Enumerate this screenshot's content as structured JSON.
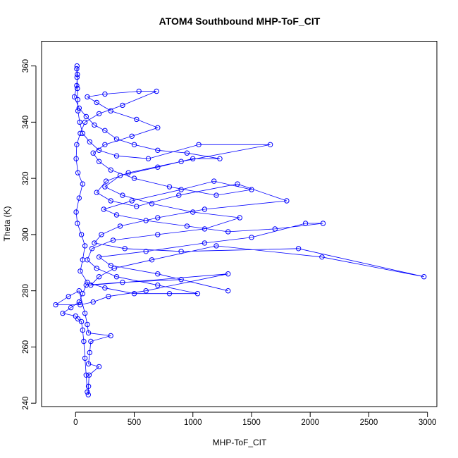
{
  "chart_data": {
    "type": "scatter",
    "title": "ATOM4 Southbound MHP-ToF_CIT",
    "xlabel": "MHP-ToF_CIT",
    "ylabel": "Theta (K)",
    "xlim": [
      -290,
      3080
    ],
    "ylim": [
      238.8,
      368.8
    ],
    "xticks": [
      0,
      500,
      1000,
      1500,
      2000,
      2500,
      3000
    ],
    "yticks": [
      240,
      260,
      280,
      300,
      320,
      340,
      360
    ],
    "grid": false,
    "legend": "none",
    "series_color": "#0000ff",
    "marker": "open-circle",
    "line": true,
    "series": [
      {
        "points": [
          [
            10,
            359
          ],
          [
            12,
            356
          ],
          [
            15,
            352
          ],
          [
            18,
            348
          ],
          [
            20,
            344
          ],
          [
            35,
            340
          ],
          [
            60,
            336
          ],
          [
            120,
            333
          ],
          [
            200,
            330
          ],
          [
            350,
            328
          ],
          [
            620,
            327
          ],
          [
            1050,
            332
          ],
          [
            1660,
            332
          ],
          [
            900,
            326
          ],
          [
            450,
            322
          ],
          [
            260,
            319
          ],
          [
            180,
            315
          ],
          [
            300,
            312
          ],
          [
            520,
            310
          ],
          [
            880,
            314
          ],
          [
            1380,
            318
          ],
          [
            1800,
            312
          ],
          [
            1100,
            309
          ],
          [
            700,
            306
          ],
          [
            380,
            303
          ],
          [
            220,
            300
          ],
          [
            160,
            297
          ],
          [
            420,
            295
          ],
          [
            900,
            294
          ],
          [
            1900,
            295
          ],
          [
            2970,
            285
          ],
          [
            2100,
            292
          ],
          [
            1200,
            296
          ],
          [
            650,
            291
          ],
          [
            330,
            288
          ],
          [
            200,
            285
          ],
          [
            130,
            282
          ],
          [
            1300,
            286
          ],
          [
            600,
            280
          ],
          [
            280,
            278
          ],
          [
            150,
            276
          ],
          [
            40,
            275
          ],
          [
            -170,
            275
          ],
          [
            -60,
            278
          ],
          [
            30,
            280
          ],
          [
            80,
            272
          ],
          [
            100,
            268
          ],
          [
            110,
            265
          ],
          [
            300,
            264
          ],
          [
            130,
            262
          ],
          [
            120,
            258
          ],
          [
            110,
            254
          ],
          [
            200,
            253
          ],
          [
            115,
            250
          ],
          [
            110,
            246
          ],
          [
            108,
            243
          ],
          [
            100,
            244
          ],
          [
            90,
            250
          ],
          [
            80,
            256
          ],
          [
            70,
            262
          ],
          [
            60,
            266
          ],
          [
            50,
            269
          ],
          [
            20,
            270
          ],
          [
            0,
            271
          ],
          [
            -110,
            272
          ],
          [
            -40,
            274
          ],
          [
            30,
            276
          ],
          [
            60,
            279
          ],
          [
            90,
            282
          ],
          [
            400,
            283
          ],
          [
            900,
            284
          ],
          [
            1300,
            280
          ],
          [
            700,
            286
          ],
          [
            300,
            289
          ],
          [
            200,
            292
          ],
          [
            600,
            294
          ],
          [
            1100,
            297
          ],
          [
            1500,
            299
          ],
          [
            1960,
            304
          ],
          [
            2110,
            304
          ],
          [
            1700,
            302
          ],
          [
            1300,
            301
          ],
          [
            950,
            303
          ],
          [
            600,
            305
          ],
          [
            350,
            307
          ],
          [
            240,
            309
          ],
          [
            480,
            312
          ],
          [
            900,
            316
          ],
          [
            1180,
            319
          ],
          [
            1500,
            316
          ],
          [
            1200,
            314
          ],
          [
            800,
            317
          ],
          [
            500,
            320
          ],
          [
            300,
            323
          ],
          [
            200,
            326
          ],
          [
            150,
            329
          ],
          [
            250,
            332
          ],
          [
            480,
            335
          ],
          [
            700,
            338
          ],
          [
            520,
            341
          ],
          [
            300,
            344
          ],
          [
            180,
            347
          ],
          [
            100,
            349
          ],
          [
            250,
            350
          ],
          [
            540,
            351
          ],
          [
            690,
            351
          ],
          [
            400,
            346
          ],
          [
            200,
            343
          ],
          [
            80,
            340
          ],
          [
            40,
            336
          ],
          [
            10,
            332
          ],
          [
            5,
            327
          ],
          [
            20,
            322
          ],
          [
            60,
            318
          ],
          [
            30,
            313
          ],
          [
            5,
            308
          ],
          [
            15,
            304
          ],
          [
            50,
            300
          ],
          [
            80,
            296
          ],
          [
            60,
            291
          ],
          [
            40,
            287
          ],
          [
            100,
            283
          ],
          [
            250,
            281
          ],
          [
            500,
            279
          ],
          [
            800,
            279
          ],
          [
            1040,
            279
          ],
          [
            700,
            282
          ],
          [
            350,
            285
          ],
          [
            180,
            288
          ],
          [
            100,
            291
          ],
          [
            140,
            295
          ],
          [
            320,
            298
          ],
          [
            700,
            300
          ],
          [
            1100,
            302
          ],
          [
            1400,
            306
          ],
          [
            1000,
            308
          ],
          [
            650,
            311
          ],
          [
            400,
            314
          ],
          [
            250,
            317
          ],
          [
            380,
            321
          ],
          [
            700,
            324
          ],
          [
            1000,
            327
          ],
          [
            1230,
            327
          ],
          [
            950,
            329
          ],
          [
            700,
            330
          ],
          [
            500,
            332
          ],
          [
            350,
            334
          ],
          [
            250,
            337
          ],
          [
            160,
            339
          ],
          [
            90,
            342
          ],
          [
            30,
            345
          ],
          [
            -10,
            349
          ],
          [
            10,
            353
          ],
          [
            15,
            357
          ],
          [
            12,
            360
          ]
        ]
      }
    ]
  }
}
